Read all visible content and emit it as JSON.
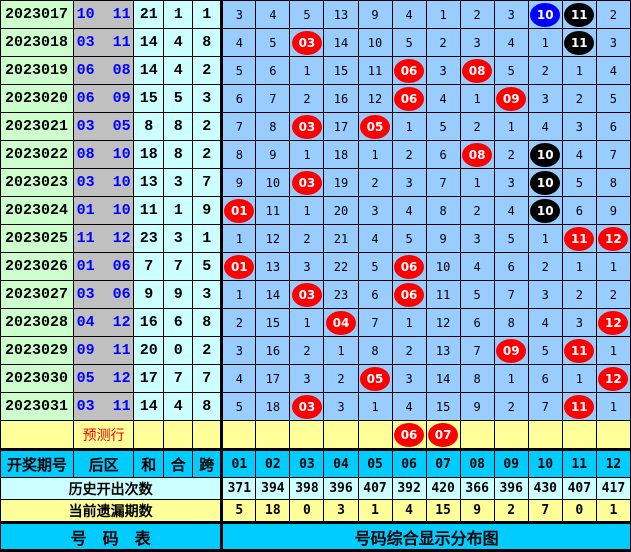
{
  "ball_colors": {
    "red": "#ff0000",
    "black": "#000000",
    "blue": "#0000ff"
  },
  "draws": [
    {
      "period": "2023017",
      "back": [
        "10",
        "11"
      ],
      "sum": "21",
      "he": "1",
      "span": "1",
      "cells": [
        "3",
        "4",
        "5",
        "13",
        "9",
        "4",
        "1",
        "2",
        "3",
        {
          "n": "10",
          "ball": "blue"
        },
        {
          "n": "11",
          "ball": "black"
        },
        "2"
      ]
    },
    {
      "period": "2023018",
      "back": [
        "03",
        "11"
      ],
      "sum": "14",
      "he": "4",
      "span": "8",
      "cells": [
        "4",
        "5",
        {
          "n": "03",
          "ball": "red"
        },
        "14",
        "10",
        "5",
        "2",
        "3",
        "4",
        "1",
        {
          "n": "11",
          "ball": "black"
        },
        "3"
      ]
    },
    {
      "period": "2023019",
      "back": [
        "06",
        "08"
      ],
      "sum": "14",
      "he": "4",
      "span": "2",
      "cells": [
        "5",
        "6",
        "1",
        "15",
        "11",
        {
          "n": "06",
          "ball": "red"
        },
        "3",
        {
          "n": "08",
          "ball": "red"
        },
        "5",
        "2",
        "1",
        "4"
      ]
    },
    {
      "period": "2023020",
      "back": [
        "06",
        "09"
      ],
      "sum": "15",
      "he": "5",
      "span": "3",
      "cells": [
        "6",
        "7",
        "2",
        "16",
        "12",
        {
          "n": "06",
          "ball": "red"
        },
        "4",
        "1",
        {
          "n": "09",
          "ball": "red"
        },
        "3",
        "2",
        "5"
      ]
    },
    {
      "period": "2023021",
      "back": [
        "03",
        "05"
      ],
      "sum": "8",
      "he": "8",
      "span": "2",
      "cells": [
        "7",
        "8",
        {
          "n": "03",
          "ball": "red"
        },
        "17",
        {
          "n": "05",
          "ball": "red"
        },
        "1",
        "5",
        "2",
        "1",
        "4",
        "3",
        "6"
      ]
    },
    {
      "period": "2023022",
      "back": [
        "08",
        "10"
      ],
      "sum": "18",
      "he": "8",
      "span": "2",
      "cells": [
        "8",
        "9",
        "1",
        "18",
        "1",
        "2",
        "6",
        {
          "n": "08",
          "ball": "red"
        },
        "2",
        {
          "n": "10",
          "ball": "black"
        },
        "4",
        "7"
      ]
    },
    {
      "period": "2023023",
      "back": [
        "03",
        "10"
      ],
      "sum": "13",
      "he": "3",
      "span": "7",
      "cells": [
        "9",
        "10",
        {
          "n": "03",
          "ball": "red"
        },
        "19",
        "2",
        "3",
        "7",
        "1",
        "3",
        {
          "n": "10",
          "ball": "black"
        },
        "5",
        "8"
      ]
    },
    {
      "period": "2023024",
      "back": [
        "01",
        "10"
      ],
      "sum": "11",
      "he": "1",
      "span": "9",
      "cells": [
        {
          "n": "01",
          "ball": "red"
        },
        "11",
        "1",
        "20",
        "3",
        "4",
        "8",
        "2",
        "4",
        {
          "n": "10",
          "ball": "black"
        },
        "6",
        "9"
      ]
    },
    {
      "period": "2023025",
      "back": [
        "11",
        "12"
      ],
      "sum": "23",
      "he": "3",
      "span": "1",
      "cells": [
        "1",
        "12",
        "2",
        "21",
        "4",
        "5",
        "9",
        "3",
        "5",
        "1",
        {
          "n": "11",
          "ball": "red"
        },
        {
          "n": "12",
          "ball": "red"
        }
      ]
    },
    {
      "period": "2023026",
      "back": [
        "01",
        "06"
      ],
      "sum": "7",
      "he": "7",
      "span": "5",
      "cells": [
        {
          "n": "01",
          "ball": "red"
        },
        "13",
        "3",
        "22",
        "5",
        {
          "n": "06",
          "ball": "red"
        },
        "10",
        "4",
        "6",
        "2",
        "1",
        "1"
      ]
    },
    {
      "period": "2023027",
      "back": [
        "03",
        "06"
      ],
      "sum": "9",
      "he": "9",
      "span": "3",
      "cells": [
        "1",
        "14",
        {
          "n": "03",
          "ball": "red"
        },
        "23",
        "6",
        {
          "n": "06",
          "ball": "red"
        },
        "11",
        "5",
        "7",
        "3",
        "2",
        "2"
      ]
    },
    {
      "period": "2023028",
      "back": [
        "04",
        "12"
      ],
      "sum": "16",
      "he": "6",
      "span": "8",
      "cells": [
        "2",
        "15",
        "1",
        {
          "n": "04",
          "ball": "red"
        },
        "7",
        "1",
        "12",
        "6",
        "8",
        "4",
        "3",
        {
          "n": "12",
          "ball": "red"
        }
      ]
    },
    {
      "period": "2023029",
      "back": [
        "09",
        "11"
      ],
      "sum": "20",
      "he": "0",
      "span": "2",
      "cells": [
        "3",
        "16",
        "2",
        "1",
        "8",
        "2",
        "13",
        "7",
        {
          "n": "09",
          "ball": "red"
        },
        "5",
        {
          "n": "11",
          "ball": "red"
        },
        "1"
      ]
    },
    {
      "period": "2023030",
      "back": [
        "05",
        "12"
      ],
      "sum": "17",
      "he": "7",
      "span": "7",
      "cells": [
        "4",
        "17",
        "3",
        "2",
        {
          "n": "05",
          "ball": "red"
        },
        "3",
        "14",
        "8",
        "1",
        "6",
        "1",
        {
          "n": "12",
          "ball": "red"
        }
      ]
    },
    {
      "period": "2023031",
      "back": [
        "03",
        "11"
      ],
      "sum": "14",
      "he": "4",
      "span": "8",
      "cells": [
        "5",
        "18",
        {
          "n": "03",
          "ball": "red"
        },
        "3",
        "1",
        "4",
        "15",
        "9",
        "2",
        "7",
        {
          "n": "11",
          "ball": "red"
        },
        "1"
      ]
    }
  ],
  "prediction": {
    "label": "预测行",
    "cells": [
      "",
      "",
      "",
      "",
      "",
      {
        "n": "06",
        "ball": "red"
      },
      {
        "n": "07",
        "ball": "red"
      },
      "",
      "",
      "",
      "",
      ""
    ]
  },
  "header": {
    "period": "开奖期号",
    "back": "后区",
    "sum": "和",
    "he": "合",
    "span": "跨",
    "numbers": [
      "01",
      "02",
      "03",
      "04",
      "05",
      "06",
      "07",
      "08",
      "09",
      "10",
      "11",
      "12"
    ]
  },
  "history": {
    "label": "历史开出次数",
    "values": [
      "371",
      "394",
      "398",
      "396",
      "407",
      "392",
      "420",
      "366",
      "396",
      "430",
      "407",
      "417"
    ]
  },
  "missing": {
    "label": "当前遗漏期数",
    "values": [
      "5",
      "18",
      "0",
      "3",
      "1",
      "4",
      "15",
      "9",
      "2",
      "7",
      "0",
      "1"
    ]
  },
  "footer": {
    "left": "号　码　表",
    "right": "号码综合显示分布图"
  }
}
